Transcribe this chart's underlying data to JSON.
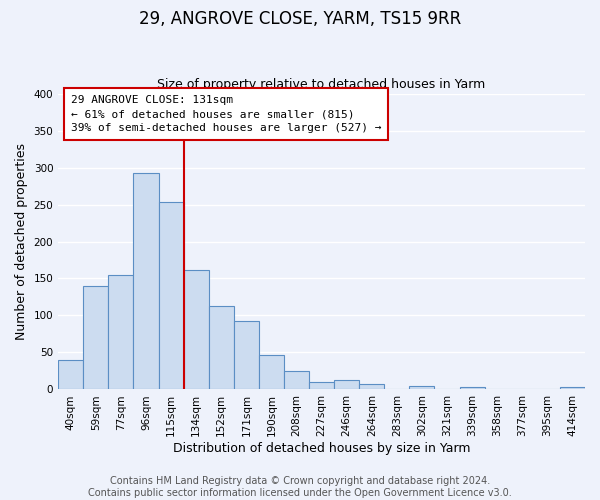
{
  "title": "29, ANGROVE CLOSE, YARM, TS15 9RR",
  "subtitle": "Size of property relative to detached houses in Yarm",
  "xlabel": "Distribution of detached houses by size in Yarm",
  "ylabel": "Number of detached properties",
  "bar_labels": [
    "40sqm",
    "59sqm",
    "77sqm",
    "96sqm",
    "115sqm",
    "134sqm",
    "152sqm",
    "171sqm",
    "190sqm",
    "208sqm",
    "227sqm",
    "246sqm",
    "264sqm",
    "283sqm",
    "302sqm",
    "321sqm",
    "339sqm",
    "358sqm",
    "377sqm",
    "395sqm",
    "414sqm"
  ],
  "bar_values": [
    40,
    140,
    155,
    292,
    253,
    161,
    113,
    93,
    46,
    25,
    10,
    13,
    8,
    0,
    5,
    0,
    3,
    0,
    0,
    0,
    3
  ],
  "bar_color": "#ccdcf0",
  "bar_edge_color": "#5b8ec4",
  "vline_x_index": 4,
  "vline_color": "#cc0000",
  "annotation_title": "29 ANGROVE CLOSE: 131sqm",
  "annotation_line1": "← 61% of detached houses are smaller (815)",
  "annotation_line2": "39% of semi-detached houses are larger (527) →",
  "annotation_box_color": "#ffffff",
  "annotation_box_edge": "#cc0000",
  "ylim": [
    0,
    400
  ],
  "yticks": [
    0,
    50,
    100,
    150,
    200,
    250,
    300,
    350,
    400
  ],
  "footer_line1": "Contains HM Land Registry data © Crown copyright and database right 2024.",
  "footer_line2": "Contains public sector information licensed under the Open Government Licence v3.0.",
  "bg_color": "#eef2fb",
  "grid_color": "#ffffff",
  "title_fontsize": 12,
  "subtitle_fontsize": 9,
  "axis_label_fontsize": 9,
  "tick_fontsize": 7.5,
  "annotation_fontsize": 8,
  "footer_fontsize": 7
}
